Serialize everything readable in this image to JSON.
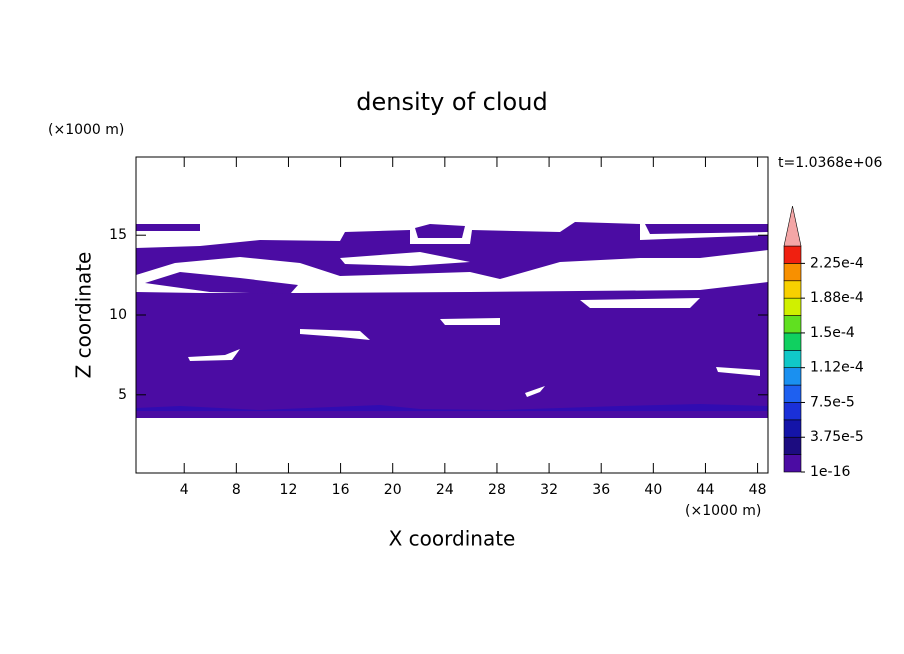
{
  "chart_data": {
    "type": "contour",
    "title": "density of cloud",
    "x_label": "X coordinate",
    "y_label": "Z coordinate",
    "x_unit": "(×1000 m)",
    "y_unit": "(×1000 m)",
    "time_label": "t=1.0368e+06",
    "xlim": [
      0.3,
      48.8
    ],
    "xticks": [
      4,
      8,
      12,
      16,
      20,
      24,
      28,
      32,
      36,
      40,
      44,
      48
    ],
    "ylim": [
      0.1,
      19.9
    ],
    "yticks": [
      5,
      10,
      15
    ],
    "colorbar": {
      "clim": [
        1e-16,
        0.00024375
      ],
      "colors": [
        "#4b0ca3",
        "#1c0c80",
        "#1414a8",
        "#1a30d8",
        "#1e60f0",
        "#1a90f0",
        "#10c8c8",
        "#10d060",
        "#60e020",
        "#d0f000",
        "#f8d000",
        "#f89000",
        "#f02010"
      ],
      "extend_color": "#f4a6a6",
      "ticks": [
        1e-16,
        {
          "value": 3.75e-05,
          "label": "3.75e-5"
        },
        {
          "value": 7.5e-05,
          "label": "7.5e-5"
        },
        {
          "value": 0.0001125,
          "label": "1.12e-4"
        },
        {
          "value": 0.00015,
          "label": "1.5e-4"
        },
        {
          "value": 0.0001875,
          "label": "1.88e-4"
        },
        {
          "value": 0.000225,
          "label": "2.25e-4"
        }
      ]
    }
  }
}
